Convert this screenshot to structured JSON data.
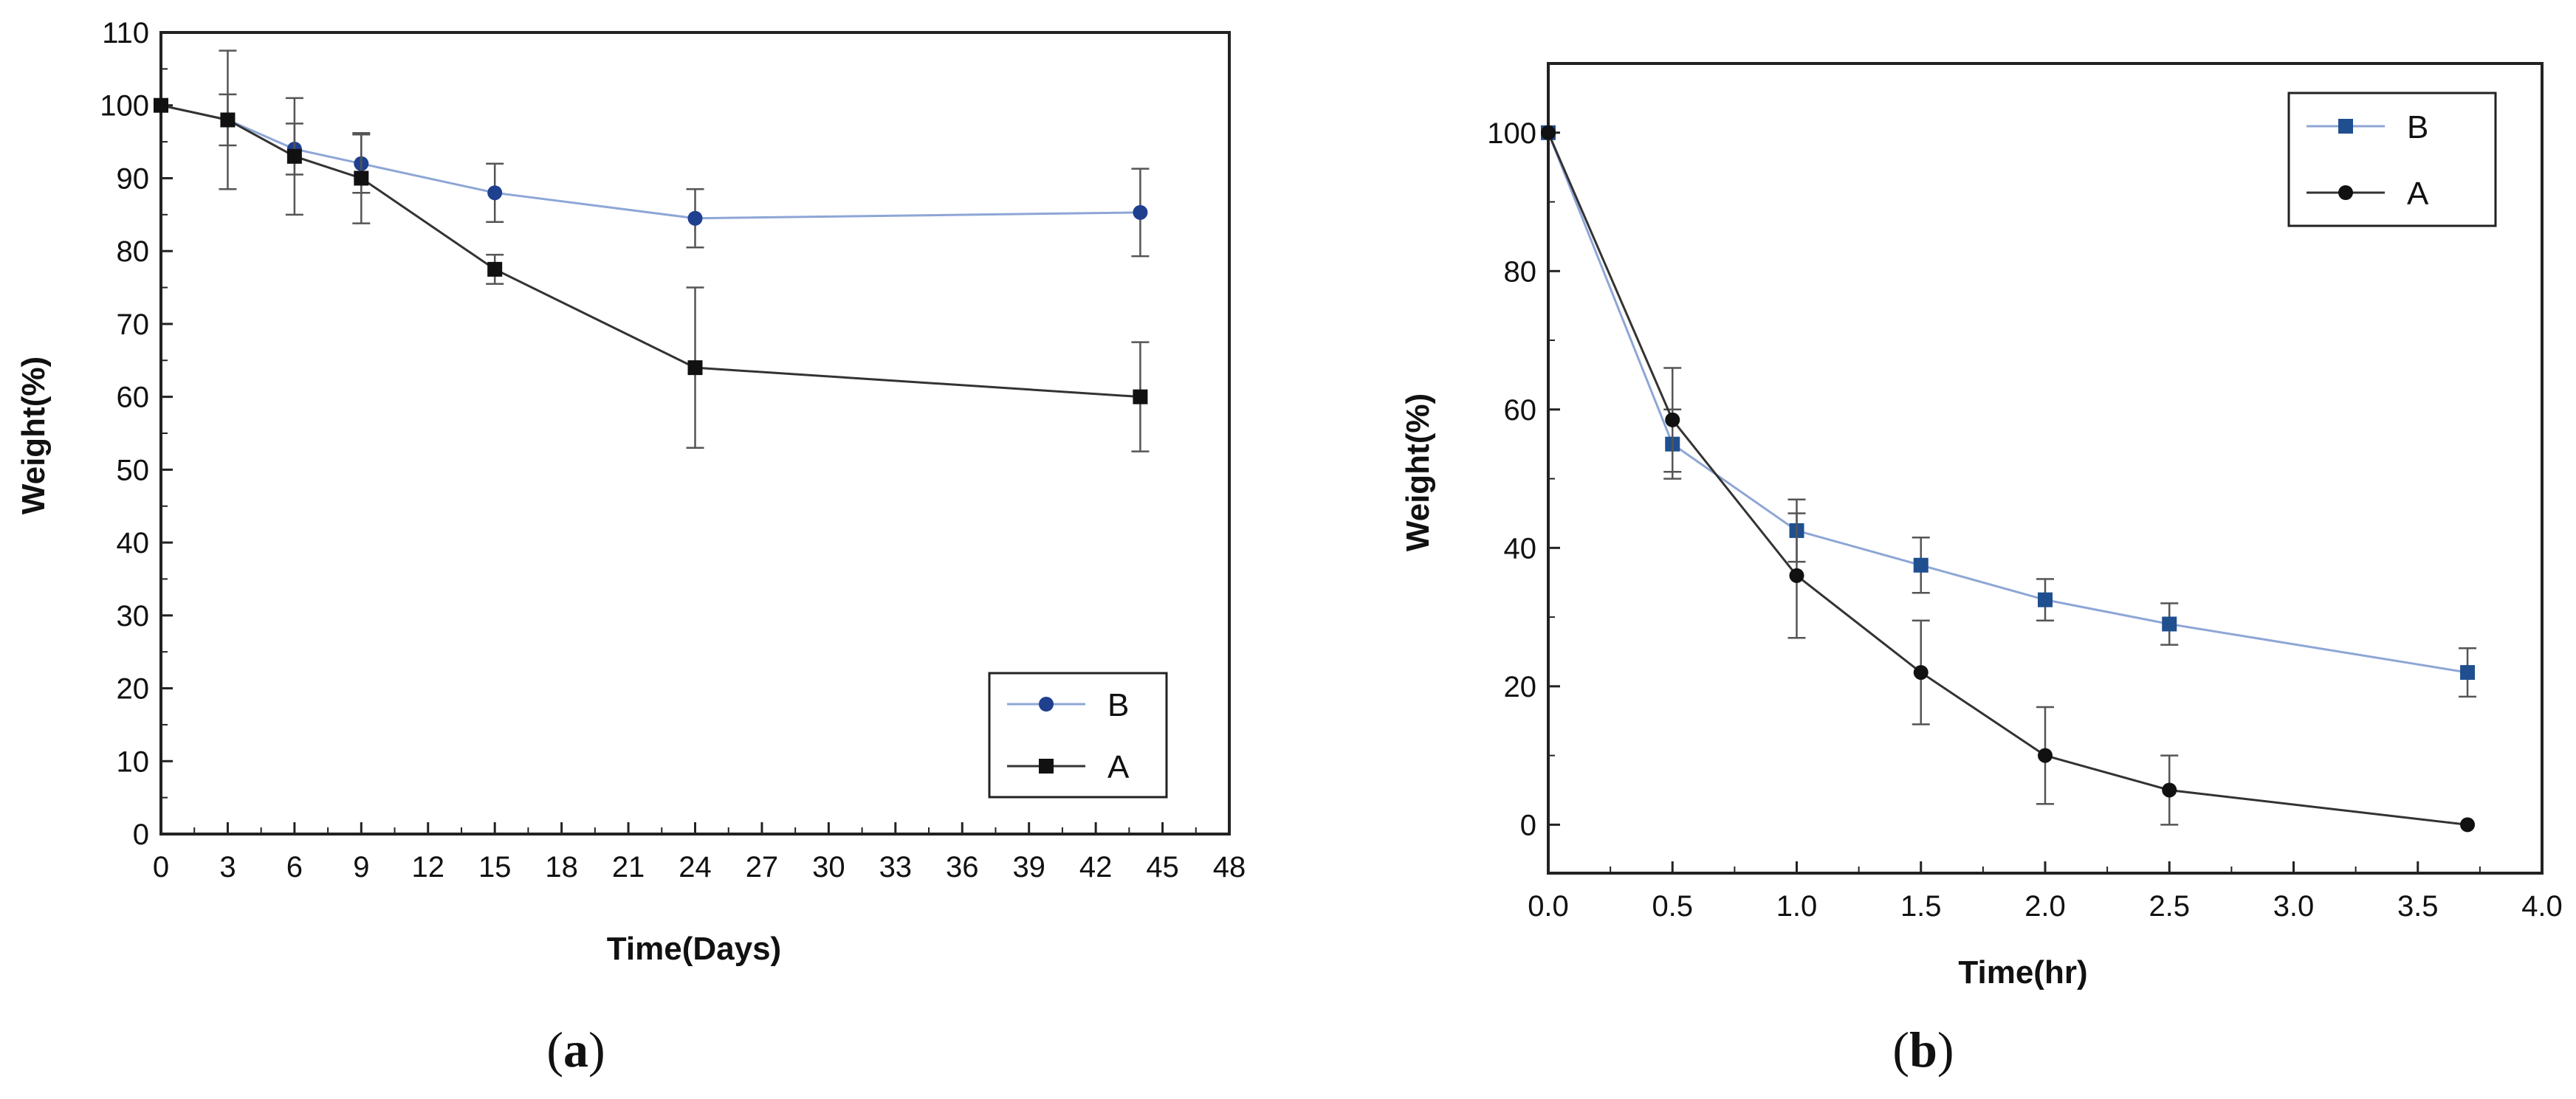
{
  "chart_data": [
    {
      "panel": "a",
      "type": "line",
      "caption": "a",
      "xlabel": "Time(Days)",
      "ylabel": "Weight(%)",
      "xlim": [
        0,
        48
      ],
      "ylim": [
        0,
        110
      ],
      "xticks": [
        0,
        3,
        6,
        9,
        12,
        15,
        18,
        21,
        24,
        27,
        30,
        33,
        36,
        39,
        42,
        45,
        48
      ],
      "yticks": [
        0,
        10,
        20,
        30,
        40,
        50,
        60,
        70,
        80,
        90,
        100,
        110
      ],
      "legend_position": "bottom-right",
      "series": [
        {
          "name": "B",
          "marker": "circle",
          "color": "#1f3f8f",
          "line_color": "#8ea6d6",
          "x": [
            0,
            3,
            6,
            9,
            15,
            24,
            44
          ],
          "y": [
            100,
            98,
            94,
            92,
            88,
            84.5,
            85.3
          ],
          "err": [
            0,
            3.5,
            3.5,
            4,
            4,
            4,
            6
          ]
        },
        {
          "name": "A",
          "marker": "square",
          "color": "#111111",
          "line_color": "#333333",
          "x": [
            0,
            3,
            6,
            9,
            15,
            24,
            44
          ],
          "y": [
            100,
            98,
            93,
            90,
            77.5,
            64,
            60
          ],
          "err": [
            0,
            9.5,
            8,
            6.2,
            2,
            11,
            7.5
          ]
        }
      ]
    },
    {
      "panel": "b",
      "type": "line",
      "caption": "b",
      "xlabel": "Time(hr)",
      "ylabel": "Weight(%)",
      "xlim": [
        0,
        4
      ],
      "ylim": [
        -7,
        110
      ],
      "xticks": [
        0,
        0.5,
        1,
        1.5,
        2,
        2.5,
        3,
        3.5,
        4
      ],
      "xtick_labels": [
        "0.0",
        "0.5",
        "1.0",
        "1.5",
        "2.0",
        "2.5",
        "3.0",
        "3.5",
        "4.0"
      ],
      "yticks": [
        0,
        20,
        40,
        60,
        80,
        100
      ],
      "legend_position": "top-right",
      "series": [
        {
          "name": "B",
          "marker": "square",
          "color": "#1f4f8f",
          "line_color": "#8ea6d6",
          "x": [
            0,
            0.5,
            1.0,
            1.5,
            2.0,
            2.5,
            3.7
          ],
          "y": [
            100,
            55,
            42.5,
            37.5,
            32.5,
            29,
            22
          ],
          "err": [
            0,
            5,
            4.5,
            4,
            3,
            3,
            3.5
          ]
        },
        {
          "name": "A",
          "marker": "circle",
          "color": "#111111",
          "line_color": "#333333",
          "x": [
            0,
            0.5,
            1.0,
            1.5,
            2.0,
            2.5,
            3.7
          ],
          "y": [
            100,
            58.5,
            36,
            22,
            10,
            5,
            0
          ],
          "err": [
            0,
            7.5,
            9,
            7.5,
            7,
            5,
            0
          ]
        }
      ]
    }
  ]
}
